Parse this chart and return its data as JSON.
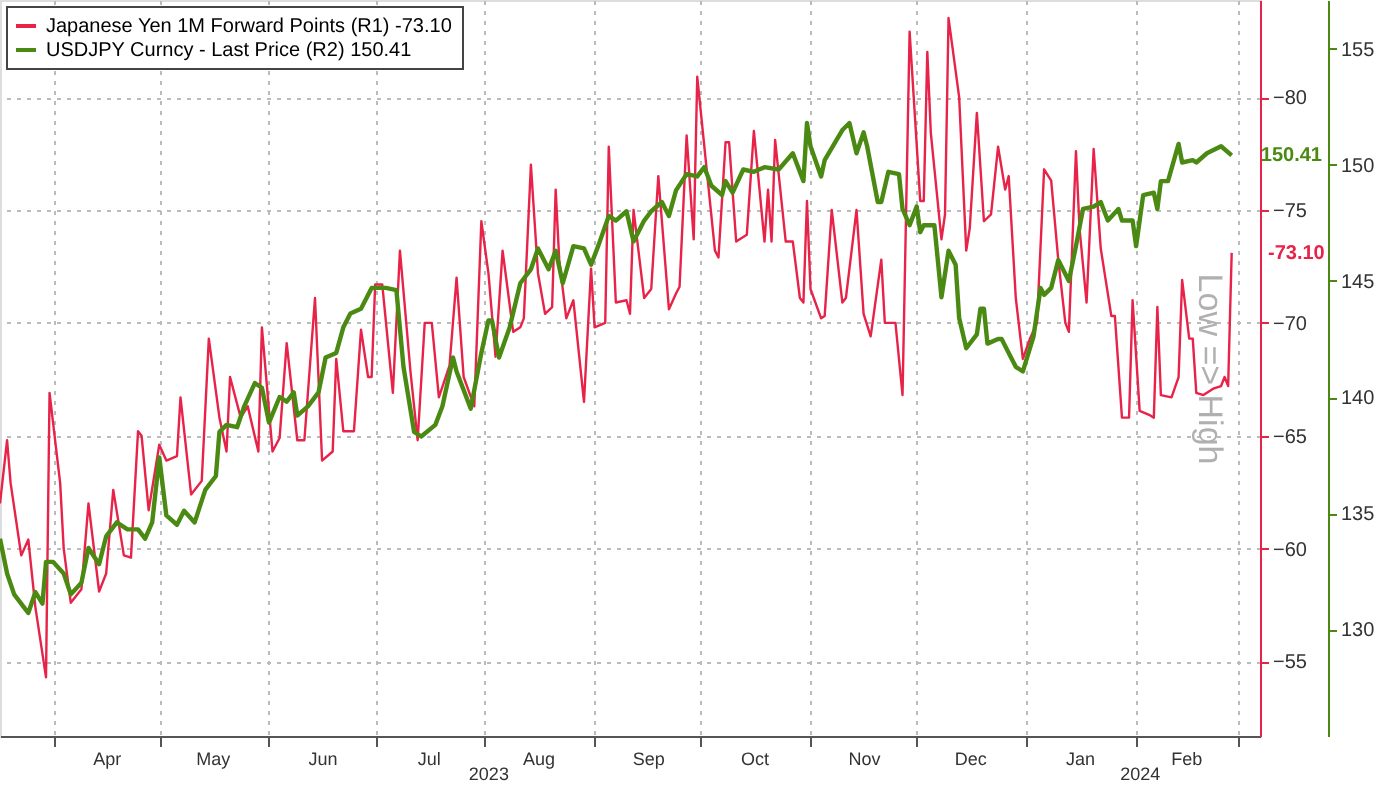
{
  "chart_data": {
    "type": "line",
    "ylabel": "Low => High",
    "legend": "top left",
    "grid": true,
    "marker": "none",
    "line_style": "solid",
    "xlim": [
      "2023-03-17",
      "2024-03-07"
    ],
    "xticks": [
      {
        "value": "2023-04-01",
        "label": null
      },
      {
        "value": "2023-04-16",
        "label": "Apr"
      },
      {
        "value": "2023-05-01",
        "label": null
      },
      {
        "value": "2023-05-16",
        "label": "May"
      },
      {
        "value": "2023-06-01",
        "label": null
      },
      {
        "value": "2023-06-16",
        "label": "Jun"
      },
      {
        "value": "2023-07-01",
        "label": null
      },
      {
        "value": "2023-07-16",
        "label": "Jul"
      },
      {
        "value": "2023-08-01",
        "label": null
      },
      {
        "value": "2023-08-16",
        "label": "Aug"
      },
      {
        "value": "2023-09-01",
        "label": null
      },
      {
        "value": "2023-09-16",
        "label": "Sep"
      },
      {
        "value": "2023-10-01",
        "label": null
      },
      {
        "value": "2023-10-16",
        "label": "Oct"
      },
      {
        "value": "2023-11-01",
        "label": null
      },
      {
        "value": "2023-11-16",
        "label": "Nov"
      },
      {
        "value": "2023-12-01",
        "label": null
      },
      {
        "value": "2023-12-16",
        "label": "Dec"
      },
      {
        "value": "2024-01-01",
        "label": null
      },
      {
        "value": "2024-01-16",
        "label": "Jan"
      },
      {
        "value": "2024-02-01",
        "label": null
      },
      {
        "value": "2024-02-15",
        "label": "Feb"
      },
      {
        "value": "2024-03-01",
        "label": null
      }
    ],
    "ylim": [
      -51.7,
      -84.3
    ],
    "yticks": [
      -80,
      -75,
      -70,
      -65,
      -60,
      -55
    ],
    "annotations": [
      "2023",
      "2024"
    ],
    "y2lim": [
      125.4,
      157.1
    ],
    "y2ticks": [
      130,
      135,
      140,
      145,
      150,
      155
    ],
    "series": [
      {
        "name": "Japanese Yen 1M Forward Points (R1) -73.10",
        "color": "#e8234a",
        "axis": "y",
        "x": [
          "2023-03-17",
          "2023-03-19",
          "2023-03-20",
          "2023-03-23",
          "2023-03-25",
          "2023-03-27",
          "2023-03-30",
          "2023-03-31",
          "2023-04-03",
          "2023-04-04",
          "2023-04-06",
          "2023-04-09",
          "2023-04-11",
          "2023-04-14",
          "2023-04-16",
          "2023-04-18",
          "2023-04-21",
          "2023-04-23",
          "2023-04-25",
          "2023-04-26",
          "2023-04-28",
          "2023-05-01",
          "2023-05-03",
          "2023-05-06",
          "2023-05-07",
          "2023-05-10",
          "2023-05-13",
          "2023-05-15",
          "2023-05-18",
          "2023-05-20",
          "2023-05-21",
          "2023-05-24",
          "2023-05-26",
          "2023-05-29",
          "2023-05-30",
          "2023-06-02",
          "2023-06-04",
          "2023-06-06",
          "2023-06-09",
          "2023-06-11",
          "2023-06-14",
          "2023-06-16",
          "2023-06-19",
          "2023-06-20",
          "2023-06-22",
          "2023-06-25",
          "2023-06-27",
          "2023-06-29",
          "2023-06-30",
          "2023-07-01",
          "2023-07-03",
          "2023-07-06",
          "2023-07-08",
          "2023-07-11",
          "2023-07-13",
          "2023-07-15",
          "2023-07-17",
          "2023-07-19",
          "2023-07-22",
          "2023-07-24",
          "2023-07-26",
          "2023-07-29",
          "2023-07-31",
          "2023-08-02",
          "2023-08-04",
          "2023-08-06",
          "2023-08-09",
          "2023-08-11",
          "2023-08-12",
          "2023-08-14",
          "2023-08-16",
          "2023-08-18",
          "2023-08-20",
          "2023-08-21",
          "2023-08-22",
          "2023-08-24",
          "2023-08-26",
          "2023-08-29",
          "2023-08-31",
          "2023-09-01",
          "2023-09-04",
          "2023-09-05",
          "2023-09-07",
          "2023-09-10",
          "2023-09-11",
          "2023-09-12",
          "2023-09-15",
          "2023-09-17",
          "2023-09-19",
          "2023-09-22",
          "2023-09-24",
          "2023-09-25",
          "2023-09-27",
          "2023-09-29",
          "2023-09-30",
          "2023-10-05",
          "2023-10-06",
          "2023-10-08",
          "2023-10-09",
          "2023-10-11",
          "2023-10-14",
          "2023-10-16",
          "2023-10-19",
          "2023-10-20",
          "2023-10-21",
          "2023-10-22",
          "2023-10-25",
          "2023-10-27",
          "2023-10-29",
          "2023-10-30",
          "2023-10-31",
          "2023-11-01",
          "2023-11-04",
          "2023-11-05",
          "2023-11-07",
          "2023-11-10",
          "2023-11-11",
          "2023-11-14",
          "2023-11-16",
          "2023-11-18",
          "2023-11-21",
          "2023-11-22",
          "2023-11-25",
          "2023-11-27",
          "2023-11-29",
          "2023-12-02",
          "2023-12-03",
          "2023-12-04",
          "2023-12-05",
          "2023-12-08",
          "2023-12-09",
          "2023-12-10",
          "2023-12-13",
          "2023-12-15",
          "2023-12-16",
          "2023-12-18",
          "2023-12-20",
          "2023-12-22",
          "2023-12-24",
          "2023-12-26",
          "2023-12-27",
          "2023-12-29",
          "2023-12-31",
          "2024-01-02",
          "2024-01-04",
          "2024-01-06",
          "2024-01-08",
          "2024-01-10",
          "2024-01-12",
          "2024-01-13",
          "2024-01-15",
          "2024-01-16",
          "2024-01-18",
          "2024-01-20",
          "2024-01-22",
          "2024-01-25",
          "2024-01-26",
          "2024-01-28",
          "2024-01-30",
          "2024-01-31",
          "2024-02-02",
          "2024-02-05",
          "2024-02-06",
          "2024-02-07",
          "2024-02-08",
          "2024-02-11",
          "2024-02-13",
          "2024-02-14",
          "2024-02-16",
          "2024-02-17",
          "2024-02-18",
          "2024-02-20",
          "2024-02-23",
          "2024-02-25",
          "2024-02-26",
          "2024-02-27",
          "2024-02-28"
        ],
        "values": [
          -62.0,
          -64.8,
          -62.9,
          -59.7,
          -60.4,
          -57.4,
          -54.3,
          -66.9,
          -62.9,
          -60.0,
          -57.6,
          -58.2,
          -62.0,
          -58.1,
          -58.9,
          -62.6,
          -59.7,
          -59.6,
          -65.2,
          -65.0,
          -61.7,
          -64.6,
          -63.9,
          -64.1,
          -66.7,
          -62.4,
          -63.0,
          -69.3,
          -65.8,
          -64.3,
          -67.6,
          -65.8,
          -66.3,
          -64.3,
          -69.8,
          -64.3,
          -64.9,
          -69.1,
          -64.8,
          -64.8,
          -71.1,
          -63.9,
          -64.3,
          -68.4,
          -65.2,
          -65.2,
          -69.7,
          -67.6,
          -67.6,
          -71.7,
          -71.7,
          -66.9,
          -73.2,
          -67.8,
          -64.8,
          -70.0,
          -70.0,
          -66.7,
          -68.1,
          -72.0,
          -67.6,
          -66.3,
          -74.5,
          -72.2,
          -68.5,
          -73.2,
          -69.6,
          -69.8,
          -70.2,
          -77.0,
          -72.2,
          -70.4,
          -70.7,
          -75.9,
          -72.8,
          -70.2,
          -71.0,
          -66.5,
          -72.4,
          -69.8,
          -70.0,
          -77.8,
          -70.9,
          -71.0,
          -70.4,
          -75.0,
          -71.1,
          -71.5,
          -76.5,
          -70.6,
          -71.3,
          -71.6,
          -78.3,
          -73.7,
          -80.9,
          -73.2,
          -72.9,
          -78.0,
          -78.0,
          -73.6,
          -73.9,
          -78.5,
          -73.6,
          -75.9,
          -73.6,
          -78.1,
          -73.6,
          -73.6,
          -71.1,
          -70.9,
          -75.4,
          -71.5,
          -70.2,
          -70.3,
          -75.0,
          -70.9,
          -71.1,
          -75.0,
          -70.4,
          -69.4,
          -72.8,
          -70.0,
          -70.0,
          -66.8,
          -82.9,
          -75.4,
          -75.4,
          -82.0,
          -78.4,
          -73.7,
          -74.8,
          -83.5,
          -80.0,
          -73.2,
          -74.2,
          -79.3,
          -74.5,
          -74.8,
          -77.8,
          -75.9,
          -76.5,
          -71.1,
          -68.4,
          -69.3,
          -70.0,
          -76.8,
          -76.3,
          -72.8,
          -70.0,
          -69.6,
          -77.6,
          -74.2,
          -70.9,
          -77.7,
          -73.3,
          -70.3,
          -70.3,
          -65.8,
          -65.8,
          -71.0,
          -66.1,
          -65.9,
          -65.8,
          -70.7,
          -66.8,
          -66.7,
          -67.6,
          -71.9,
          -69.3,
          -69.3,
          -66.9,
          -66.8,
          -67.1,
          -67.2,
          -67.6,
          -67.2,
          -73.1
        ],
        "value_labels": [
          null,
          null,
          null,
          null,
          null,
          null,
          null,
          null,
          null,
          null,
          null,
          null,
          null,
          null,
          null,
          null,
          null,
          null,
          null,
          null,
          null,
          null,
          null,
          null,
          null,
          null,
          null,
          null,
          null,
          null,
          null,
          null,
          null,
          null,
          null,
          null,
          null,
          null,
          null,
          null,
          null,
          null,
          null,
          null,
          null,
          null,
          null,
          null,
          null,
          null,
          null,
          null,
          null,
          null,
          null,
          null,
          null,
          null,
          null,
          null,
          null,
          null,
          null,
          null,
          null,
          null,
          null,
          null,
          null,
          null,
          null,
          null,
          null,
          null,
          null,
          null,
          null,
          null,
          null,
          null,
          null,
          null,
          null,
          null,
          null,
          null,
          null,
          null,
          null,
          null,
          null,
          null,
          null,
          null,
          null,
          null,
          null,
          null,
          null,
          null,
          null,
          null,
          null,
          null,
          null,
          null,
          null,
          null,
          null,
          null,
          null,
          null,
          null,
          null,
          null,
          null,
          null,
          null,
          null,
          null,
          null,
          null,
          null,
          null,
          null,
          null,
          null,
          null,
          null,
          null,
          null,
          null,
          null,
          null,
          null,
          null,
          null,
          null,
          null,
          null,
          null,
          null,
          null,
          null,
          null,
          null,
          null,
          null,
          null,
          null,
          null,
          null,
          null,
          null,
          null,
          null,
          null,
          null,
          null,
          null,
          null,
          null,
          null,
          null,
          null,
          null,
          null,
          null,
          null,
          null,
          null,
          null,
          null,
          null,
          null,
          null,
          "-73.10"
        ]
      },
      {
        "name": "USDJPY Curncy - Last Price (R2) 150.41",
        "color": "#4b8a12",
        "axis": "y2",
        "x": [
          "2023-03-17",
          "2023-03-19",
          "2023-03-21",
          "2023-03-24",
          "2023-03-25",
          "2023-03-27",
          "2023-03-29",
          "2023-03-30",
          "2023-04-01",
          "2023-04-04",
          "2023-04-06",
          "2023-04-09",
          "2023-04-11",
          "2023-04-14",
          "2023-04-16",
          "2023-04-19",
          "2023-04-22",
          "2023-04-25",
          "2023-04-27",
          "2023-04-29",
          "2023-05-01",
          "2023-05-03",
          "2023-05-06",
          "2023-05-08",
          "2023-05-11",
          "2023-05-14",
          "2023-05-17",
          "2023-05-18",
          "2023-05-20",
          "2023-05-23",
          "2023-05-25",
          "2023-05-28",
          "2023-05-30",
          "2023-06-01",
          "2023-06-04",
          "2023-06-06",
          "2023-06-08",
          "2023-06-09",
          "2023-06-12",
          "2023-06-15",
          "2023-06-17",
          "2023-06-20",
          "2023-06-22",
          "2023-06-24",
          "2023-06-27",
          "2023-06-30",
          "2023-07-02",
          "2023-07-04",
          "2023-07-07",
          "2023-07-09",
          "2023-07-12",
          "2023-07-14",
          "2023-07-18",
          "2023-07-20",
          "2023-07-23",
          "2023-07-24",
          "2023-07-28",
          "2023-07-31",
          "2023-08-02",
          "2023-08-03",
          "2023-08-05",
          "2023-08-08",
          "2023-08-11",
          "2023-08-14",
          "2023-08-16",
          "2023-08-19",
          "2023-08-21",
          "2023-08-23",
          "2023-08-26",
          "2023-08-29",
          "2023-08-31",
          "2023-09-02",
          "2023-09-05",
          "2023-09-07",
          "2023-09-10",
          "2023-09-12",
          "2023-09-15",
          "2023-09-17",
          "2023-09-20",
          "2023-09-22",
          "2023-09-24",
          "2023-09-27",
          "2023-09-30",
          "2023-10-02",
          "2023-10-04",
          "2023-10-07",
          "2023-10-08",
          "2023-10-10",
          "2023-10-13",
          "2023-10-16",
          "2023-10-19",
          "2023-10-23",
          "2023-10-27",
          "2023-10-30",
          "2023-10-31",
          "2023-11-01",
          "2023-11-04",
          "2023-11-05",
          "2023-11-10",
          "2023-11-12",
          "2023-11-14",
          "2023-11-16",
          "2023-11-17",
          "2023-11-20",
          "2023-11-21",
          "2023-11-23",
          "2023-11-26",
          "2023-11-27",
          "2023-11-29",
          "2023-12-01",
          "2023-12-02",
          "2023-12-03",
          "2023-12-06",
          "2023-12-08",
          "2023-12-10",
          "2023-12-12",
          "2023-12-13",
          "2023-12-15",
          "2023-12-18",
          "2023-12-19",
          "2023-12-20",
          "2023-12-21",
          "2023-12-24",
          "2023-12-25",
          "2023-12-27",
          "2023-12-29",
          "2023-12-31",
          "2024-01-03",
          "2024-01-05",
          "2024-01-06",
          "2024-01-08",
          "2024-01-10",
          "2024-01-13",
          "2024-01-15",
          "2024-01-17",
          "2024-01-20",
          "2024-01-22",
          "2024-01-24",
          "2024-01-27",
          "2024-01-28",
          "2024-01-31",
          "2024-02-01",
          "2024-02-03",
          "2024-02-06",
          "2024-02-07",
          "2024-02-08",
          "2024-02-10",
          "2024-02-13",
          "2024-02-14",
          "2024-02-17",
          "2024-02-18",
          "2024-02-21",
          "2024-02-25",
          "2024-02-28"
        ],
        "values": [
          133.9,
          132.4,
          131.5,
          130.9,
          130.7,
          131.6,
          131.1,
          132.9,
          132.9,
          132.4,
          131.5,
          132.0,
          133.5,
          132.8,
          134.0,
          134.6,
          134.3,
          134.3,
          133.9,
          134.6,
          137.4,
          134.9,
          134.5,
          135.1,
          134.6,
          136.0,
          136.6,
          138.5,
          138.8,
          138.7,
          139.6,
          140.6,
          140.4,
          138.9,
          140.0,
          139.8,
          140.2,
          139.2,
          139.6,
          140.2,
          141.7,
          141.9,
          143.0,
          143.6,
          143.8,
          144.7,
          144.7,
          144.7,
          144.6,
          141.3,
          138.5,
          138.3,
          138.8,
          139.6,
          141.7,
          141.1,
          139.5,
          141.9,
          143.3,
          143.3,
          141.7,
          143.0,
          144.9,
          145.5,
          146.4,
          145.5,
          146.3,
          144.9,
          146.5,
          146.4,
          145.7,
          146.5,
          147.8,
          147.6,
          148.0,
          146.7,
          147.6,
          148.0,
          148.4,
          147.8,
          148.9,
          149.6,
          149.5,
          149.9,
          149.1,
          148.7,
          149.3,
          148.8,
          149.8,
          149.7,
          149.9,
          149.8,
          150.5,
          149.3,
          151.8,
          150.8,
          149.5,
          150.2,
          151.5,
          151.8,
          150.5,
          151.4,
          150.8,
          148.4,
          148.4,
          149.7,
          149.6,
          148.1,
          147.4,
          148.2,
          147.1,
          147.4,
          147.4,
          144.3,
          146.3,
          145.7,
          143.4,
          142.1,
          142.7,
          143.8,
          143.8,
          142.3,
          142.5,
          142.5,
          141.9,
          141.3,
          141.1,
          142.6,
          144.7,
          144.4,
          144.7,
          145.9,
          145.0,
          146.5,
          148.1,
          148.2,
          148.4,
          147.6,
          148.1,
          147.6,
          147.6,
          146.5,
          148.7,
          148.8,
          148.1,
          149.3,
          149.3,
          150.9,
          150.1,
          150.2,
          150.1,
          150.5,
          150.8,
          150.41
        ],
        "value_labels": [
          null,
          null,
          null,
          null,
          null,
          null,
          null,
          null,
          null,
          null,
          null,
          null,
          null,
          null,
          null,
          null,
          null,
          null,
          null,
          null,
          null,
          null,
          null,
          null,
          null,
          null,
          null,
          null,
          null,
          null,
          null,
          null,
          null,
          null,
          null,
          null,
          null,
          null,
          null,
          null,
          null,
          null,
          null,
          null,
          null,
          null,
          null,
          null,
          null,
          null,
          null,
          null,
          null,
          null,
          null,
          null,
          null,
          null,
          null,
          null,
          null,
          null,
          null,
          null,
          null,
          null,
          null,
          null,
          null,
          null,
          null,
          null,
          null,
          null,
          null,
          null,
          null,
          null,
          null,
          null,
          null,
          null,
          null,
          null,
          null,
          null,
          null,
          null,
          null,
          null,
          null,
          null,
          null,
          null,
          null,
          null,
          null,
          null,
          null,
          null,
          null,
          null,
          null,
          null,
          null,
          null,
          null,
          null,
          null,
          null,
          null,
          null,
          null,
          null,
          null,
          null,
          null,
          null,
          null,
          null,
          null,
          null,
          null,
          null,
          null,
          null,
          null,
          null,
          null,
          null,
          null,
          null,
          null,
          null,
          null,
          null,
          null,
          null,
          null,
          null,
          null,
          null,
          null,
          null,
          null,
          null,
          null,
          null,
          null,
          null,
          null,
          null,
          null,
          "150.41"
        ]
      }
    ]
  }
}
